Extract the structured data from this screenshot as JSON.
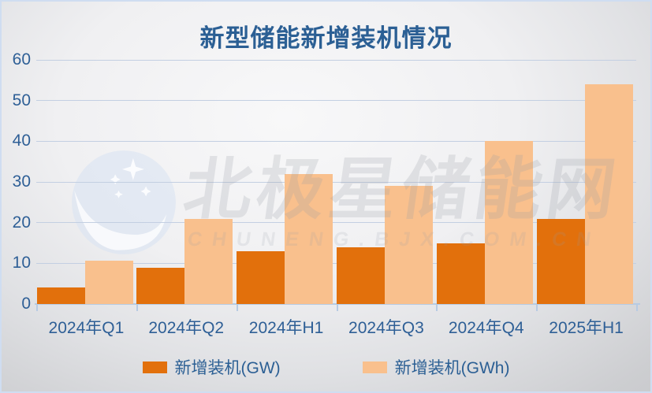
{
  "title": "新型储能新增装机情况",
  "watermark": {
    "logo_icon": "polaris-star-circle",
    "text_cn": "北极星储能网",
    "text_en": "CHUNENG.BJX.COM.CN"
  },
  "colors": {
    "bar_gw": "#e2700c",
    "bar_gwh": "#f9c08d",
    "title_text": "#2b5f94",
    "axis_text": "#2e5f96",
    "axis_line": "#b7cbe3",
    "grid_line": "#c3cfe2",
    "background_edge": "#c5c6c9",
    "background_center": "#f8f8f9"
  },
  "legend": {
    "items": [
      {
        "label": "新增装机(GW)",
        "color": "#e2700c"
      },
      {
        "label": "新增装机(GWh)",
        "color": "#f9c08d"
      }
    ]
  },
  "chart_data": {
    "type": "bar",
    "title": "新型储能新增装机情况",
    "categories": [
      "2024年Q1",
      "2024年Q2",
      "2024年H1",
      "2024年Q3",
      "2024年Q4",
      "2025年H1"
    ],
    "series": [
      {
        "name": "新增装机(GW)",
        "color": "#e2700c",
        "values": [
          4,
          9,
          13,
          14,
          15,
          21
        ]
      },
      {
        "name": "新增装机(GWh)",
        "color": "#f9c08d",
        "values": [
          10.7,
          21,
          32,
          29,
          40,
          54
        ]
      }
    ],
    "xlabel": "",
    "ylabel": "",
    "ylim": [
      0,
      60
    ],
    "yticks": [
      0,
      10,
      20,
      30,
      40,
      50,
      60
    ],
    "grid": true,
    "legend_position": "bottom"
  }
}
